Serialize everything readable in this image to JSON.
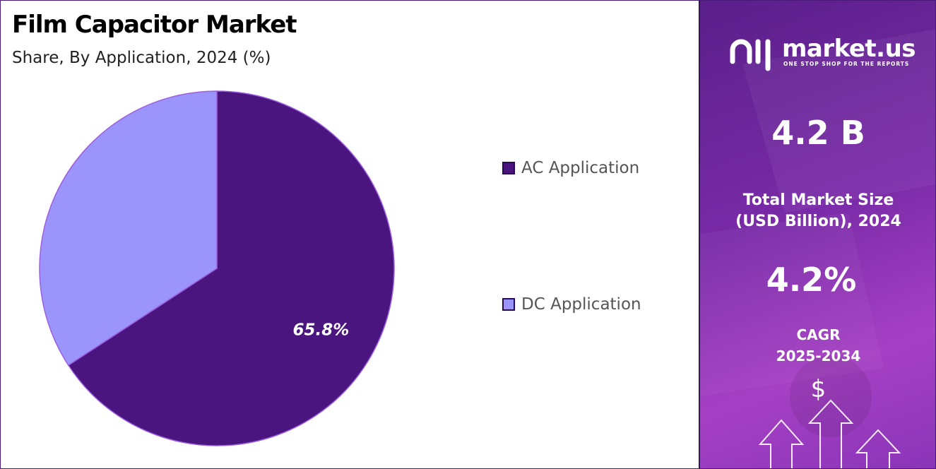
{
  "chart_data": {
    "type": "pie",
    "title": "Film Capacitor Market",
    "subtitle": "Share, By Application, 2024 (%)",
    "categories": [
      "AC Application",
      "DC Application"
    ],
    "values": [
      65.8,
      34.2
    ],
    "data_labels": [
      "65.8%",
      ""
    ],
    "colors": [
      "#4b1580",
      "#9b94fb"
    ],
    "legend_placement": "right"
  },
  "sidebar": {
    "brand_name": "market.us",
    "brand_tagline": "ONE STOP SHOP FOR THE REPORTS",
    "market_size_value": "4.2 B",
    "market_size_label_line1": "Total Market Size",
    "market_size_label_line2": "(USD Billion), 2024",
    "cagr_value": "4.2%",
    "cagr_label_line1": "CAGR",
    "cagr_label_line2": "2025-2034",
    "currency_symbol": "$"
  }
}
